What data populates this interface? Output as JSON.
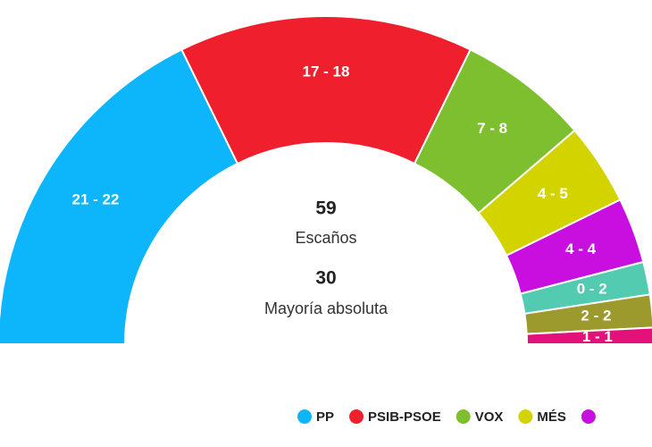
{
  "chart_data": {
    "type": "parliament",
    "categories": [
      "PP",
      "PSIB-PSOE",
      "VOX",
      "MÉS",
      null,
      null,
      null,
      null
    ],
    "low": [
      21,
      17,
      7,
      4,
      4,
      0,
      2,
      1
    ],
    "high": [
      22,
      18,
      8,
      5,
      4,
      2,
      2,
      1
    ],
    "value_labels": [
      "21 - 22",
      "17 - 18",
      "7 - 8",
      "4 - 5",
      "4 - 4",
      "0 - 2",
      "2 - 2",
      "1 - 1"
    ],
    "colors": [
      "#0db5fb",
      "#ef1f2d",
      "#7dbf2f",
      "#d3d300",
      "#c80fe0",
      "#52cbb0",
      "#9c9a2c",
      "#e5117b"
    ],
    "seats_total": 59,
    "seats_label": "Escaños",
    "majority": 30,
    "majority_label": "Mayoría absoluta",
    "legend_count": 5
  }
}
